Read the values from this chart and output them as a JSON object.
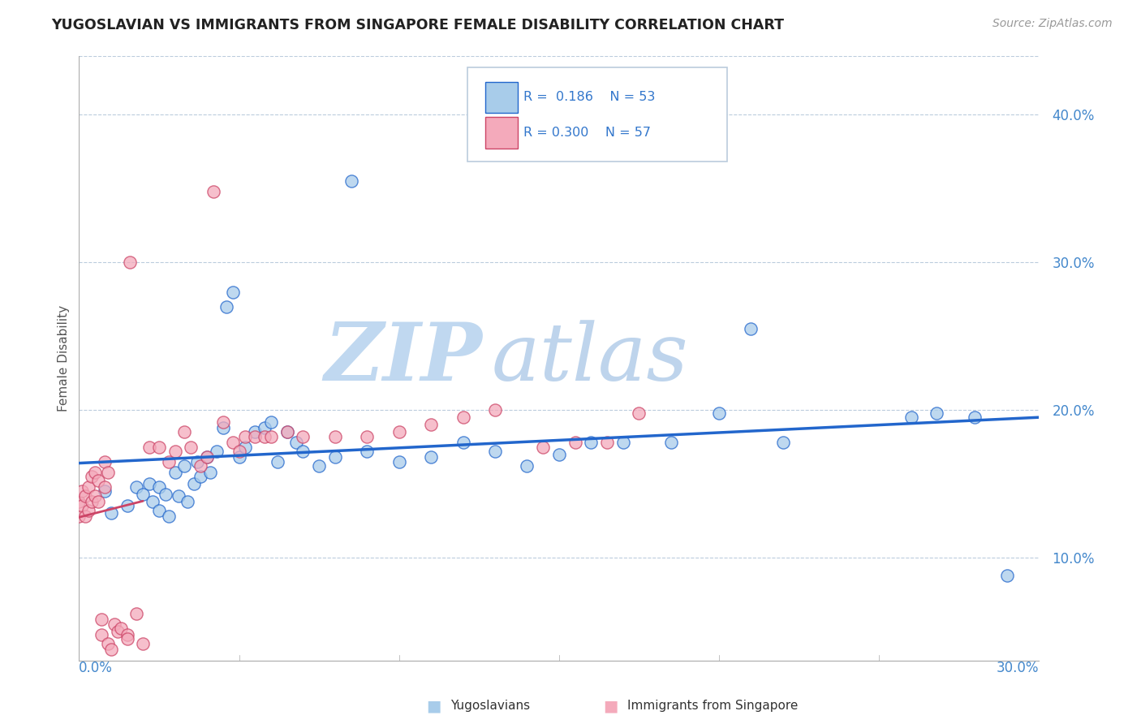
{
  "title": "YUGOSLAVIAN VS IMMIGRANTS FROM SINGAPORE FEMALE DISABILITY CORRELATION CHART",
  "source": "Source: ZipAtlas.com",
  "ylabel": "Female Disability",
  "yticks": [
    "10.0%",
    "20.0%",
    "30.0%",
    "40.0%"
  ],
  "ytick_values": [
    0.1,
    0.2,
    0.3,
    0.4
  ],
  "xlim": [
    0.0,
    0.3
  ],
  "ylim": [
    0.03,
    0.44
  ],
  "color_blue": "#A8CCEA",
  "color_pink": "#F4AABB",
  "line_blue": "#2266CC",
  "line_pink": "#CC4466",
  "blue_x": [
    0.008,
    0.01,
    0.015,
    0.018,
    0.02,
    0.022,
    0.023,
    0.025,
    0.025,
    0.027,
    0.028,
    0.03,
    0.031,
    0.033,
    0.034,
    0.036,
    0.037,
    0.038,
    0.04,
    0.041,
    0.043,
    0.045,
    0.046,
    0.048,
    0.05,
    0.052,
    0.055,
    0.058,
    0.06,
    0.062,
    0.065,
    0.068,
    0.07,
    0.075,
    0.08,
    0.085,
    0.09,
    0.1,
    0.11,
    0.12,
    0.13,
    0.14,
    0.15,
    0.16,
    0.17,
    0.185,
    0.2,
    0.21,
    0.22,
    0.26,
    0.268,
    0.28,
    0.29
  ],
  "blue_y": [
    0.145,
    0.13,
    0.135,
    0.148,
    0.143,
    0.15,
    0.138,
    0.132,
    0.148,
    0.143,
    0.128,
    0.158,
    0.142,
    0.162,
    0.138,
    0.15,
    0.165,
    0.155,
    0.168,
    0.158,
    0.172,
    0.188,
    0.27,
    0.28,
    0.168,
    0.175,
    0.185,
    0.188,
    0.192,
    0.165,
    0.185,
    0.178,
    0.172,
    0.162,
    0.168,
    0.355,
    0.172,
    0.165,
    0.168,
    0.178,
    0.172,
    0.162,
    0.17,
    0.178,
    0.178,
    0.178,
    0.198,
    0.255,
    0.178,
    0.195,
    0.198,
    0.195,
    0.088
  ],
  "pink_x": [
    0.0,
    0.0,
    0.001,
    0.001,
    0.002,
    0.002,
    0.003,
    0.003,
    0.004,
    0.004,
    0.005,
    0.005,
    0.006,
    0.006,
    0.007,
    0.007,
    0.008,
    0.008,
    0.009,
    0.009,
    0.01,
    0.011,
    0.012,
    0.013,
    0.015,
    0.015,
    0.016,
    0.018,
    0.02,
    0.022,
    0.025,
    0.028,
    0.03,
    0.033,
    0.035,
    0.038,
    0.04,
    0.042,
    0.045,
    0.048,
    0.05,
    0.052,
    0.055,
    0.058,
    0.06,
    0.065,
    0.07,
    0.08,
    0.09,
    0.1,
    0.11,
    0.12,
    0.13,
    0.145,
    0.155,
    0.165,
    0.175
  ],
  "pink_y": [
    0.138,
    0.128,
    0.135,
    0.145,
    0.128,
    0.142,
    0.132,
    0.148,
    0.138,
    0.155,
    0.142,
    0.158,
    0.138,
    0.152,
    0.048,
    0.058,
    0.148,
    0.165,
    0.042,
    0.158,
    0.038,
    0.055,
    0.05,
    0.052,
    0.048,
    0.045,
    0.3,
    0.062,
    0.042,
    0.175,
    0.175,
    0.165,
    0.172,
    0.185,
    0.175,
    0.162,
    0.168,
    0.348,
    0.192,
    0.178,
    0.172,
    0.182,
    0.182,
    0.182,
    0.182,
    0.185,
    0.182,
    0.182,
    0.182,
    0.185,
    0.19,
    0.195,
    0.2,
    0.175,
    0.178,
    0.178,
    0.198
  ],
  "wm_zip_color": "#C8DCF0",
  "wm_atlas_color": "#C0D8F0"
}
